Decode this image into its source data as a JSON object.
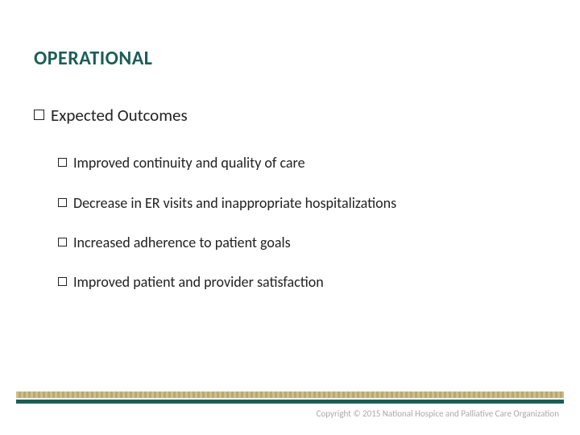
{
  "title": "OPERATIONAL",
  "colors": {
    "title": "#1b5e56",
    "text": "#222222",
    "decor_pattern_a": "#cdbf8e",
    "decor_pattern_b": "#b8a970",
    "decor_bar": "#1b5e56",
    "copyright": "#a9a9a9",
    "background": "#ffffff"
  },
  "typography": {
    "title_fontsize": 24,
    "level1_fontsize": 21,
    "level2_fontsize": 18,
    "copyright_fontsize": 11,
    "font_family": "Calibri"
  },
  "outline": {
    "heading": "Expected Outcomes",
    "items": [
      "Improved continuity and quality of care",
      "Decrease in ER visits and inappropriate hospitalizations",
      "Increased adherence to patient goals",
      "Improved patient and provider satisfaction"
    ]
  },
  "footer": {
    "copyright": "Copyright © 2015 National Hospice and Palliative Care Organization"
  }
}
